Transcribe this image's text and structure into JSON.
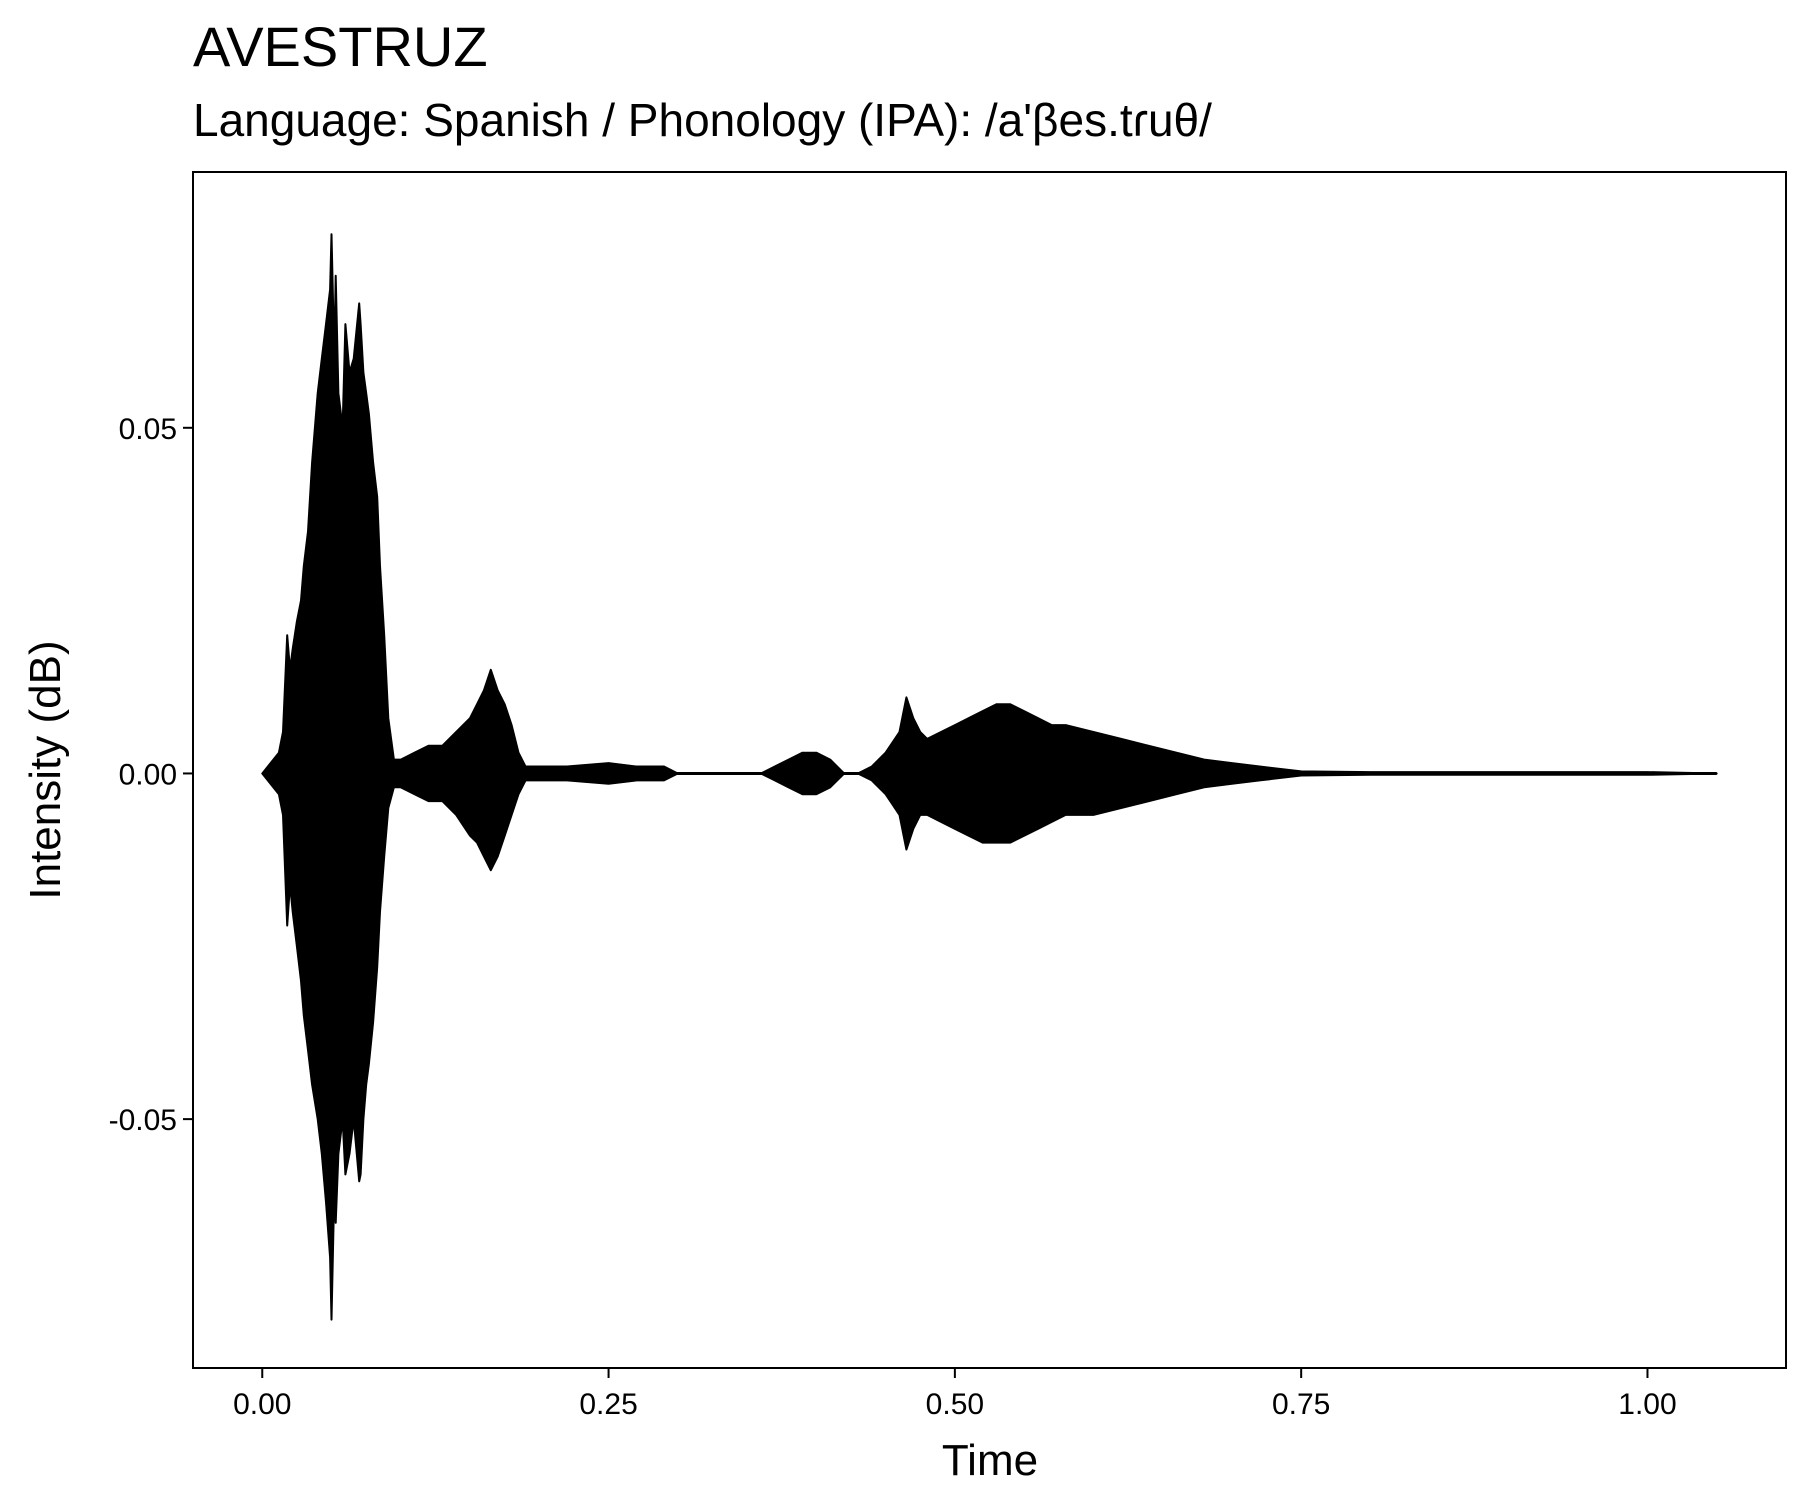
{
  "chart_data": {
    "type": "line",
    "title": "AVESTRUZ",
    "subtitle": "Language: Spanish / Phonology (IPA): /a'βes.tɾuθ/",
    "xlabel": "Time",
    "ylabel": "Intensity (dB)",
    "xlim": [
      -0.05,
      1.1
    ],
    "ylim": [
      -0.086,
      0.087
    ],
    "x_ticks": [
      0.0,
      0.25,
      0.5,
      0.75,
      1.0
    ],
    "x_tick_labels": [
      "0.00",
      "0.25",
      "0.50",
      "0.75",
      "1.00"
    ],
    "y_ticks": [
      0.05,
      0.0,
      -0.05
    ],
    "y_tick_labels": [
      "0.05",
      "0.00",
      "-0.05"
    ],
    "grid": false,
    "legend": "none",
    "line_color": "#000000",
    "series": [
      {
        "x": [
          0.0,
          0.012,
          0.015,
          0.018,
          0.02,
          0.022,
          0.025,
          0.028,
          0.03,
          0.033,
          0.036,
          0.04,
          0.043,
          0.046,
          0.049,
          0.05,
          0.052,
          0.053,
          0.055,
          0.058,
          0.06,
          0.063,
          0.066,
          0.07,
          0.071,
          0.073,
          0.075,
          0.077,
          0.08,
          0.083,
          0.085,
          0.088,
          0.091,
          0.095,
          0.1,
          0.11,
          0.12,
          0.13,
          0.14,
          0.15,
          0.155,
          0.16,
          0.165,
          0.17,
          0.175,
          0.18,
          0.185,
          0.19,
          0.2,
          0.22,
          0.25,
          0.27,
          0.29,
          0.3,
          0.36,
          0.37,
          0.38,
          0.39,
          0.4,
          0.41,
          0.42,
          0.43,
          0.44,
          0.45,
          0.46,
          0.465,
          0.47,
          0.475,
          0.48,
          0.49,
          0.5,
          0.51,
          0.52,
          0.53,
          0.54,
          0.55,
          0.56,
          0.57,
          0.58,
          0.6,
          0.62,
          0.64,
          0.66,
          0.68,
          0.7,
          0.72,
          0.75,
          0.8,
          0.9,
          1.0,
          1.05
        ],
        "upper": [
          0.0,
          0.003,
          0.006,
          0.02,
          0.015,
          0.018,
          0.022,
          0.025,
          0.03,
          0.035,
          0.045,
          0.055,
          0.06,
          0.065,
          0.07,
          0.078,
          0.06,
          0.072,
          0.055,
          0.05,
          0.065,
          0.058,
          0.06,
          0.068,
          0.065,
          0.058,
          0.055,
          0.052,
          0.045,
          0.04,
          0.03,
          0.02,
          0.008,
          0.002,
          0.002,
          0.003,
          0.004,
          0.004,
          0.006,
          0.008,
          0.01,
          0.012,
          0.015,
          0.012,
          0.01,
          0.007,
          0.003,
          0.001,
          0.001,
          0.001,
          0.0015,
          0.001,
          0.001,
          0.0,
          0.0,
          0.001,
          0.002,
          0.003,
          0.003,
          0.002,
          0.0,
          0.0,
          0.001,
          0.003,
          0.006,
          0.011,
          0.008,
          0.006,
          0.005,
          0.006,
          0.007,
          0.008,
          0.009,
          0.01,
          0.01,
          0.009,
          0.008,
          0.007,
          0.007,
          0.006,
          0.005,
          0.004,
          0.003,
          0.002,
          0.0015,
          0.001,
          0.0003,
          0.0002,
          0.0002,
          0.0002,
          0.0
        ],
        "lower": [
          0.0,
          -0.003,
          -0.006,
          -0.022,
          -0.016,
          -0.02,
          -0.025,
          -0.03,
          -0.035,
          -0.04,
          -0.045,
          -0.05,
          -0.055,
          -0.062,
          -0.07,
          -0.079,
          -0.06,
          -0.065,
          -0.055,
          -0.05,
          -0.058,
          -0.055,
          -0.05,
          -0.059,
          -0.058,
          -0.05,
          -0.045,
          -0.042,
          -0.036,
          -0.028,
          -0.02,
          -0.012,
          -0.005,
          -0.002,
          -0.002,
          -0.003,
          -0.004,
          -0.004,
          -0.006,
          -0.009,
          -0.01,
          -0.012,
          -0.014,
          -0.012,
          -0.009,
          -0.006,
          -0.003,
          -0.001,
          -0.001,
          -0.001,
          -0.0015,
          -0.001,
          -0.001,
          0.0,
          0.0,
          -0.001,
          -0.002,
          -0.003,
          -0.003,
          -0.002,
          0.0,
          0.0,
          -0.001,
          -0.003,
          -0.006,
          -0.011,
          -0.008,
          -0.006,
          -0.006,
          -0.007,
          -0.008,
          -0.009,
          -0.01,
          -0.01,
          -0.01,
          -0.009,
          -0.008,
          -0.007,
          -0.006,
          -0.006,
          -0.005,
          -0.004,
          -0.003,
          -0.002,
          -0.0015,
          -0.001,
          -0.0003,
          -0.0002,
          -0.0002,
          -0.0002,
          0.0
        ]
      }
    ]
  }
}
